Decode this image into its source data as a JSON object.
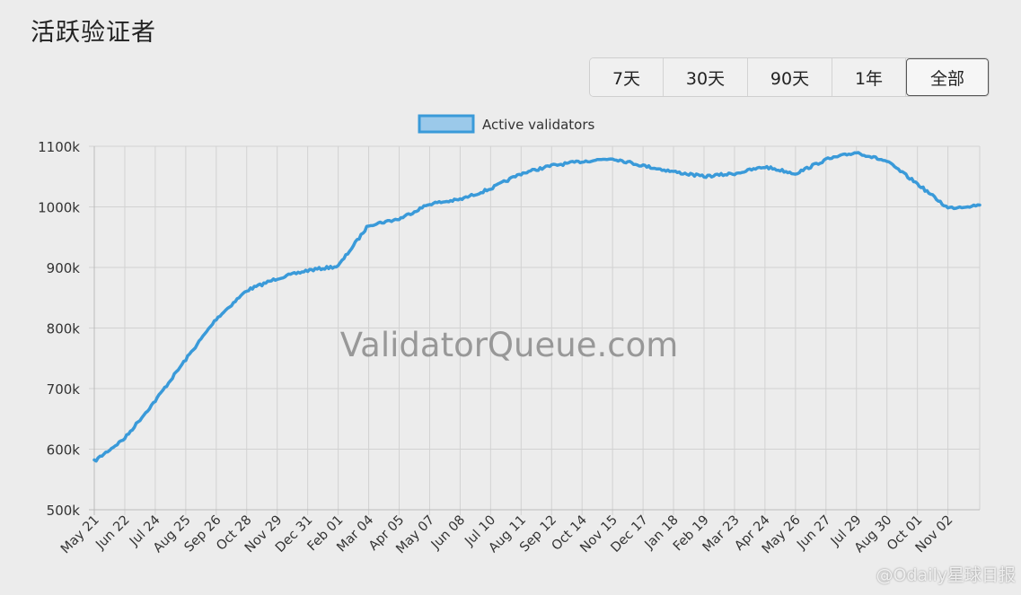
{
  "header": {
    "title": "活跃验证者"
  },
  "range_buttons": [
    {
      "label": "7天",
      "active": false
    },
    {
      "label": "30天",
      "active": false
    },
    {
      "label": "90天",
      "active": false
    },
    {
      "label": "1年",
      "active": false
    },
    {
      "label": "全部",
      "active": true
    }
  ],
  "watermark": "ValidatorQueue.com",
  "corner_watermark": "@Odaily星球日报",
  "colors": {
    "line": "#3a9ad9",
    "legend_fill": "#9bc9ea",
    "grid": "#d2d2d2",
    "background": "#ececec"
  },
  "chart_data": {
    "type": "line",
    "legend": [
      "Active validators"
    ],
    "legend_position": "top-center",
    "grid": true,
    "ylim": [
      500,
      1100
    ],
    "y_ticks": [
      500,
      600,
      700,
      800,
      900,
      1000,
      1100
    ],
    "y_tick_labels": [
      "500k",
      "600k",
      "700k",
      "800k",
      "900k",
      "1000k",
      "1100k"
    ],
    "x_tick_labels": [
      "May 21",
      "Jun 22",
      "Jul 24",
      "Aug 25",
      "Sep 26",
      "Oct 28",
      "Nov 29",
      "Dec 31",
      "Feb 01",
      "Mar 04",
      "Apr 05",
      "May 07",
      "Jun 08",
      "Jul 10",
      "Aug 11",
      "Sep 12",
      "Oct 14",
      "Nov 15",
      "Dec 17",
      "Jan 18",
      "Feb 19",
      "Mar 23",
      "Apr 24",
      "May 26",
      "Jun 27",
      "Jul 29",
      "Aug 30",
      "Oct 01",
      "Nov 02"
    ],
    "series": [
      {
        "name": "Active validators",
        "unit": "k",
        "points": [
          [
            "May 21",
            580
          ],
          [
            "Jun 22",
            618
          ],
          [
            "Jul 24",
            680
          ],
          [
            "Aug 25",
            748
          ],
          [
            "Sep 26",
            815
          ],
          [
            "Oct 28",
            862
          ],
          [
            "Nov 29",
            882
          ],
          [
            "Dec 31",
            895
          ],
          [
            "Feb 01",
            902
          ],
          [
            "Mar 04",
            970
          ],
          [
            "Apr 05",
            980
          ],
          [
            "May 07",
            1005
          ],
          [
            "Jun 08",
            1012
          ],
          [
            "Jul 10",
            1030
          ],
          [
            "Aug 11",
            1055
          ],
          [
            "Sep 12",
            1068
          ],
          [
            "Oct 14",
            1075
          ],
          [
            "Nov 15",
            1080
          ],
          [
            "Dec 17",
            1068
          ],
          [
            "Jan 18",
            1058
          ],
          [
            "Feb 19",
            1050
          ],
          [
            "Mar 23",
            1055
          ],
          [
            "Apr 24",
            1066
          ],
          [
            "May 26",
            1055
          ],
          [
            "Jun 27",
            1078
          ],
          [
            "Jul 29",
            1090
          ],
          [
            "Aug 30",
            1075
          ],
          [
            "Oct 01",
            1038
          ],
          [
            "Nov 02",
            998
          ],
          [
            "end",
            1003
          ]
        ]
      }
    ]
  }
}
